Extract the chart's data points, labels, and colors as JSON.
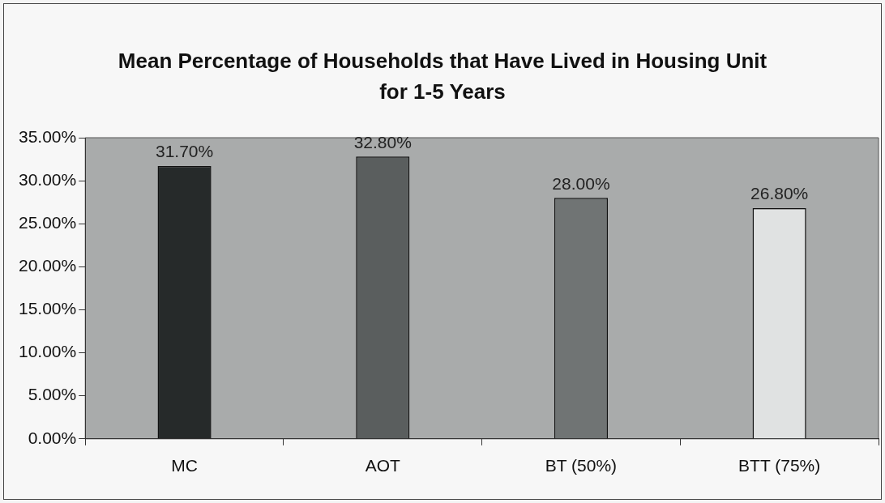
{
  "chart_data": {
    "type": "bar",
    "title": "Mean Percentage of Households that Have Lived in Housing Unit for 1-5 Years",
    "categories": [
      "MC",
      "AOT",
      "BT (50%)",
      "BTT (75%)"
    ],
    "values": [
      31.7,
      32.8,
      28.0,
      26.8
    ],
    "colors": [
      "#262a2a",
      "#5a5e5e",
      "#707474",
      "#e0e2e2"
    ],
    "value_labels": [
      "31.70%",
      "32.80%",
      "28.00%",
      "26.80%"
    ],
    "ylim": [
      0,
      35
    ],
    "yticks": [
      {
        "value": 0,
        "label": "0.00%"
      },
      {
        "value": 5,
        "label": "5.00%"
      },
      {
        "value": 10,
        "label": "10.00%"
      },
      {
        "value": 15,
        "label": "15.00%"
      },
      {
        "value": 20,
        "label": "20.00%"
      },
      {
        "value": 25,
        "label": "25.00%"
      },
      {
        "value": 30,
        "label": "30.00%"
      },
      {
        "value": 35,
        "label": "35.00%"
      }
    ],
    "grid": false,
    "legend": false
  }
}
